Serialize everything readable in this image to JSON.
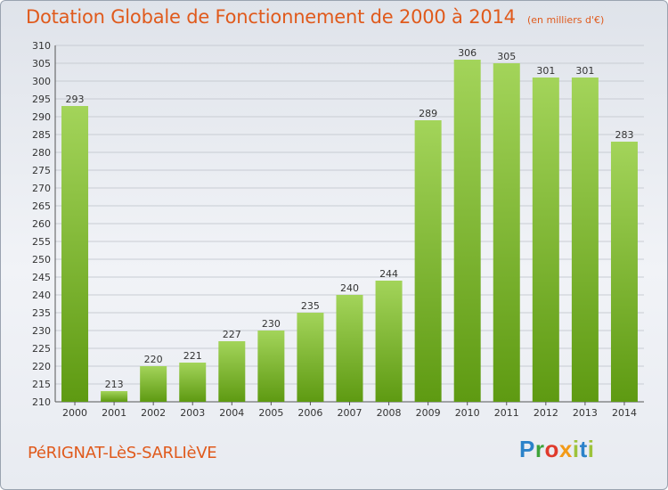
{
  "header": {
    "title": "Dotation Globale de Fonctionnement de 2000 à 2014",
    "subtitle": "(en milliers d'€)"
  },
  "footer": {
    "commune": "PéRIGNAT-LèS-SARLIèVE",
    "logo_text": "Proxiti"
  },
  "colors": {
    "title": "#e05a1c",
    "bar_light": "#a3d45a",
    "bar_dark": "#5e9a12",
    "grid": "#c8ccd3"
  },
  "chart_data": {
    "type": "bar",
    "categories": [
      "2000",
      "2001",
      "2002",
      "2003",
      "2004",
      "2005",
      "2006",
      "2007",
      "2008",
      "2009",
      "2010",
      "2011",
      "2012",
      "2013",
      "2014"
    ],
    "values": [
      293,
      213,
      220,
      221,
      227,
      230,
      235,
      240,
      244,
      289,
      306,
      305,
      301,
      301,
      283
    ],
    "ylim": [
      210,
      310
    ],
    "yticks": [
      210,
      215,
      220,
      225,
      230,
      235,
      240,
      245,
      250,
      255,
      260,
      265,
      270,
      275,
      280,
      285,
      290,
      295,
      300,
      305,
      310
    ],
    "grid": true
  }
}
